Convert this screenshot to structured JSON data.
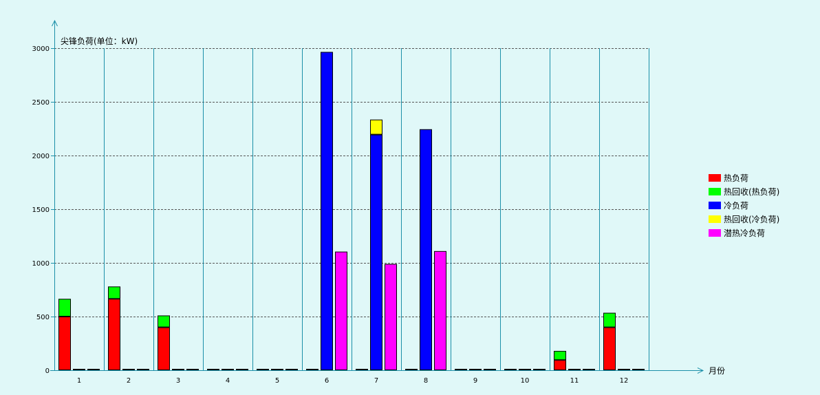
{
  "chart_data": {
    "type": "bar",
    "title": "",
    "ylabel": "尖锋负荷(单位：kW)",
    "xlabel": "月份",
    "ylim": [
      0,
      3000
    ],
    "yticks": [
      0,
      500,
      1000,
      1500,
      2000,
      2500,
      3000
    ],
    "grid": true,
    "legend_position": "right",
    "categories": [
      "1",
      "2",
      "3",
      "4",
      "5",
      "6",
      "7",
      "8",
      "9",
      "10",
      "11",
      "12"
    ],
    "stacks": [
      {
        "stack": "heat",
        "series": [
          {
            "name": "热负荷",
            "color": "#ff0000",
            "values": [
              500,
              665,
              400,
              0,
              0,
              0,
              0,
              0,
              0,
              0,
              95,
              400
            ]
          },
          {
            "name": "热回收(热负荷)",
            "color": "#00ff00",
            "values": [
              165,
              115,
              110,
              0,
              0,
              0,
              0,
              0,
              0,
              0,
              85,
              135
            ]
          }
        ]
      },
      {
        "stack": "cool",
        "series": [
          {
            "name": "冷负荷",
            "color": "#0000ff",
            "values": [
              0,
              0,
              0,
              0,
              0,
              2965,
              2195,
              2245,
              0,
              0,
              0,
              0
            ]
          },
          {
            "name": "热回收(冷负荷)",
            "color": "#ffff00",
            "values": [
              0,
              0,
              0,
              0,
              0,
              0,
              140,
              0,
              0,
              0,
              0,
              0
            ]
          }
        ]
      },
      {
        "stack": "latent",
        "series": [
          {
            "name": "潜热冷负荷",
            "color": "#ff00ff",
            "values": [
              0,
              0,
              0,
              0,
              0,
              1105,
              990,
              1110,
              0,
              0,
              0,
              0
            ]
          }
        ]
      }
    ]
  },
  "colors": {
    "background": "#e0f8f8",
    "axis": "#1a8fa8",
    "grid": "#555555",
    "bar_outline": "#000000"
  }
}
